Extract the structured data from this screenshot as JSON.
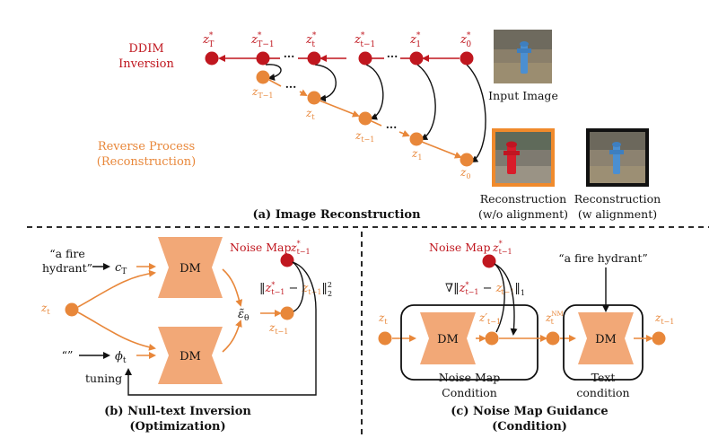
{
  "colors": {
    "inversion_red": "#c0171f",
    "reverse_orange": "#e8873a",
    "dm_fill": "#f2a877",
    "frame_orange": "#f08a2c"
  },
  "panel_a": {
    "inversion_label_1": "DDIM",
    "inversion_label_2": "Inversion",
    "reverse_label_1": "Reverse Process",
    "reverse_label_2": "(Reconstruction)",
    "top_nodes": [
      "z",
      "z",
      "z",
      "z",
      "z",
      "z"
    ],
    "top_subs": [
      "T",
      "T−1",
      "t",
      "t−1",
      "1",
      "0"
    ],
    "bottom_nodes": [
      "z",
      "z",
      "z",
      "z",
      "z"
    ],
    "bottom_subs": [
      "T−1",
      "t",
      "t−1",
      "1",
      "0"
    ],
    "star": "*",
    "dots": "···",
    "input_caption": "Input Image",
    "recon_wo_1": "Reconstruction",
    "recon_wo_2": "(w/o alignment)",
    "recon_w_1": "Reconstruction",
    "recon_w_2": "(w alignment)",
    "title": "(a) Image Reconstruction"
  },
  "panel_b": {
    "prompt_1": "“a fire",
    "prompt_2": "hydrant”",
    "null_prompt": "“”",
    "c_label": "c",
    "c_sub": "T",
    "phi_label": "ϕ",
    "phi_sub": "t",
    "zt": "z",
    "zt_sub": "t",
    "dm_top": "DM",
    "dm_bottom": "DM",
    "eps": "ε̃",
    "eps_sub": "θ",
    "noise_map": "Noise Map",
    "zstar": "z",
    "zstar_sub": "t−1",
    "zprev": "z",
    "zprev_sub": "t−1",
    "loss_open": "‖",
    "loss_z1": "z",
    "loss_z1_sub": "t−1",
    "loss_minus": " − ",
    "loss_z2": "z",
    "loss_z2_sub": "t−1",
    "loss_close": "‖",
    "loss_exp": "2",
    "loss_low": "2",
    "tuning": "tuning",
    "title_1": "(b) Null-text Inversion",
    "title_2": "(Optimization)"
  },
  "panel_c": {
    "noise_map": "Noise Map",
    "zstar": "z",
    "zstar_sub": "t−1",
    "grad": "∇‖",
    "g_z1": "z",
    "g_z1_sub": "t−1",
    "g_minus": " − ",
    "g_z2": "z",
    "g_z2_sub": "t−1",
    "g_close": "‖",
    "g_low": "1",
    "prompt": "“a fire hydrant”",
    "zt": "z",
    "zt_sub": "t",
    "dm_1": "DM",
    "dm_2": "DM",
    "zp": "z′",
    "zp_sub": "t−1",
    "znm": "z",
    "znm_sup": "NM",
    "znm_sub": "t",
    "zout": "z",
    "zout_sub": "t−1",
    "box1_1": "Noise Map",
    "box1_2": "Condition",
    "box2_1": "Text",
    "box2_2": "condition",
    "title_1": "(c) Noise Map Guidance",
    "title_2": "(Condition)"
  }
}
